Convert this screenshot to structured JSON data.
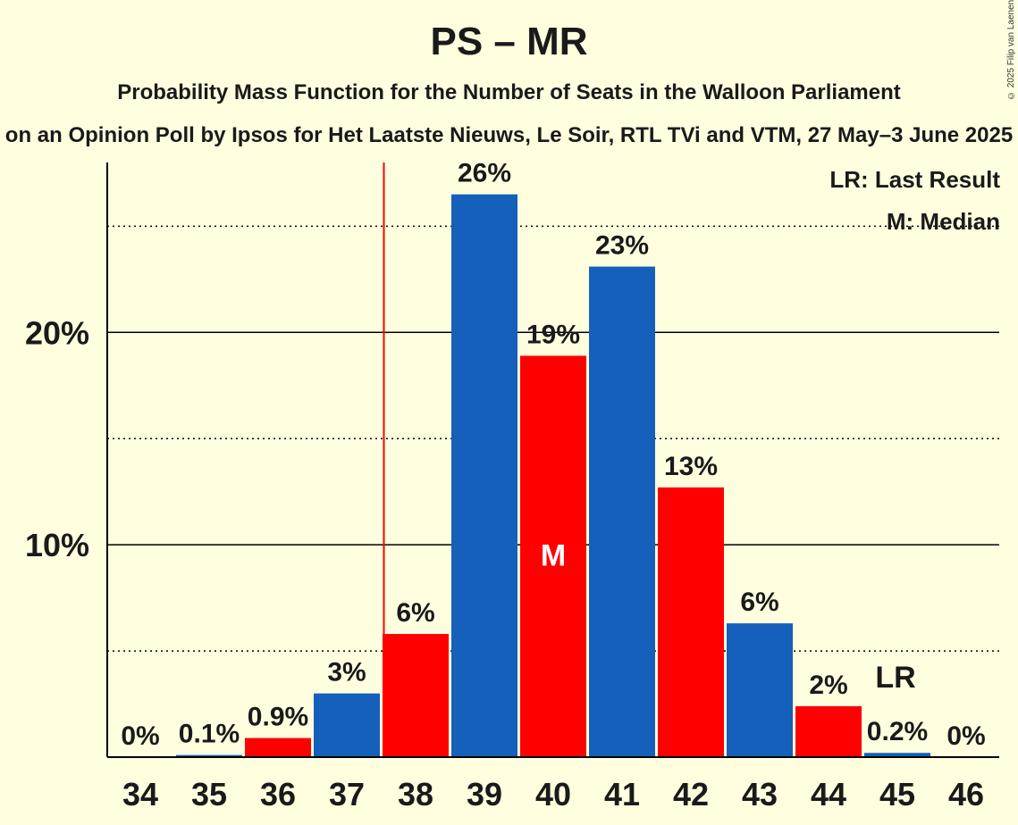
{
  "title": "PS – MR",
  "subtitle": "Probability Mass Function for the Number of Seats in the Walloon Parliament",
  "subtitle2": "on an Opinion Poll by Ipsos for Het Laatste Nieuws, Le Soir, RTL TVi and VTM, 27 May–3 June 2025",
  "copyright": "© 2025 Filip van Laenen",
  "legend": {
    "lr": "LR: Last Result",
    "median": "M: Median"
  },
  "chart_data": {
    "type": "bar",
    "categories": [
      "34",
      "35",
      "36",
      "37",
      "38",
      "39",
      "40",
      "41",
      "42",
      "43",
      "44",
      "45",
      "46"
    ],
    "values": [
      0,
      0.1,
      0.9,
      3,
      5.8,
      26.5,
      18.9,
      23.1,
      12.7,
      6.3,
      2.4,
      0.2,
      0
    ],
    "labels": [
      "0%",
      "0.1%",
      "0.9%",
      "3%",
      "6%",
      "26%",
      "19%",
      "23%",
      "13%",
      "6%",
      "2%",
      "0.2%",
      "0%"
    ],
    "colors": [
      "#FF0000",
      "#1460BB",
      "#FF0000",
      "#1460BB",
      "#FF0000",
      "#1460BB",
      "#FF0000",
      "#1460BB",
      "#FF0000",
      "#1460BB",
      "#FF0000",
      "#1460BB",
      "#FF0000"
    ],
    "ylim": [
      0,
      28
    ],
    "yticks": [
      {
        "value": 10,
        "label": "10%"
      },
      {
        "value": 20,
        "label": "20%"
      }
    ],
    "dotted_gridlines": [
      5,
      15,
      25
    ],
    "last_result": {
      "category": "37.5",
      "marker_category": "45",
      "label": "LR"
    },
    "median": {
      "category": "40",
      "label": "M"
    },
    "grid": true,
    "legend_position": "top-right"
  }
}
